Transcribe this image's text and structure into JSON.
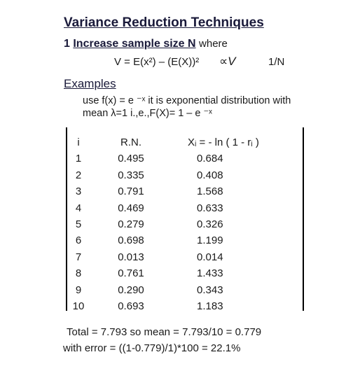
{
  "title": "Variance Reduction Techniques",
  "section": {
    "number": "1",
    "heading": "Increase sample size N",
    "where": "where",
    "formula": "V = E(x²) – (E(X))²",
    "proportional": "∝V",
    "inverse": "1/N"
  },
  "examples": {
    "label": "Examples",
    "use_line": "use f(x) = e ⁻ˣ  it is exponential distribution with",
    "mean_line": "mean λ=1 i.,e.,F(X)= 1 – e ⁻ˣ"
  },
  "table": {
    "headers": {
      "i": "i",
      "rn": "R.N.",
      "x": "Xᵢ = - ln ( 1 - rᵢ )"
    },
    "rows": [
      {
        "i": "1",
        "rn": "0.495",
        "x": "0.684"
      },
      {
        "i": "2",
        "rn": "0.335",
        "x": "0.408"
      },
      {
        "i": "3",
        "rn": "0.791",
        "x": "1.568"
      },
      {
        "i": "4",
        "rn": "0.469",
        "x": "0.633"
      },
      {
        "i": "5",
        "rn": "0.279",
        "x": "0.326"
      },
      {
        "i": "6",
        "rn": "0.698",
        "x": "1.199"
      },
      {
        "i": "7",
        "rn": "0.013",
        "x": "0.014"
      },
      {
        "i": "8",
        "rn": "0.761",
        "x": "1.433"
      },
      {
        "i": "9",
        "rn": "0.290",
        "x": "0.343"
      },
      {
        "i": "10",
        "rn": "0.693",
        "x": "1.183"
      }
    ]
  },
  "summary": {
    "total_line": "Total   =   7.793   so mean = 7.793/10 = 0.779",
    "error_line": "with error = ((1-0.779)/1)*100 = 22.1%"
  }
}
